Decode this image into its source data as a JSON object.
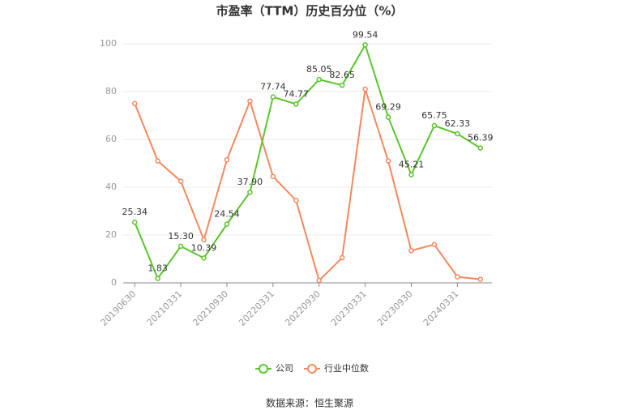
{
  "chart_data": {
    "type": "line",
    "title": "市盈率（TTM）历史百分位（%）",
    "categories": [
      "20190630",
      null,
      "20210331",
      null,
      "20210930",
      null,
      "20220331",
      null,
      "20220930",
      null,
      "20230331",
      null,
      "20230930",
      null,
      "20240331",
      null
    ],
    "series": [
      {
        "name": "公司",
        "color": "#5ac52a",
        "values": [
          25.34,
          1.83,
          15.3,
          10.39,
          24.54,
          37.9,
          77.74,
          74.77,
          85.05,
          82.65,
          99.54,
          69.29,
          45.21,
          65.75,
          62.33,
          56.39
        ],
        "value_labels": [
          "25.34",
          "1.83",
          "15.30",
          "10.39",
          "24.54",
          "37.90",
          "77.74",
          "74.77",
          "85.05",
          "82.65",
          "99.54",
          "69.29",
          "45.21",
          "65.75",
          "62.33",
          "56.39"
        ]
      },
      {
        "name": "行业中位数",
        "color": "#f4895f",
        "values": [
          75,
          51,
          42.5,
          18,
          51.5,
          76,
          44.5,
          34.5,
          1,
          10.5,
          81,
          51,
          13.5,
          16,
          2.5,
          1.5
        ]
      }
    ],
    "ylim": [
      0,
      100
    ],
    "yticks": [
      0,
      20,
      40,
      60,
      80,
      100
    ],
    "grid": true,
    "source": "数据来源：恒生聚源"
  }
}
